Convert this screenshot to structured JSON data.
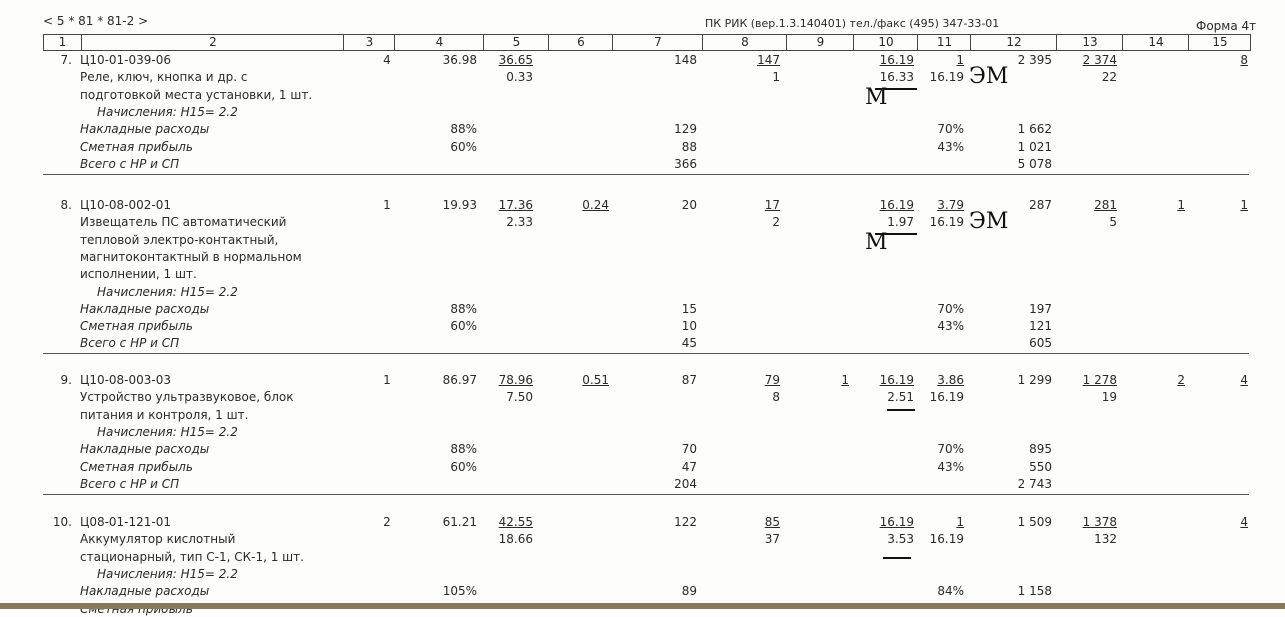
{
  "header": {
    "code": "< 5 * 81 * 81-2 >",
    "software": "ПК РИК (вер.1.3.140401) тел./факс (495) 347-33-01",
    "form": "Форма 4т",
    "columns": [
      "1",
      "2",
      "3",
      "4",
      "5",
      "6",
      "7",
      "8",
      "9",
      "10",
      "11",
      "12",
      "13",
      "14",
      "15"
    ]
  },
  "items": [
    {
      "num": "7.",
      "code": "Ц10-01-039-06",
      "desc": [
        "Реле, ключ, кнопка и др. с",
        "подготовкой места установки, 1 шт."
      ],
      "accrual": "Начисления: Н15= 2.2",
      "c3": "4",
      "c4": "36.98",
      "c5": [
        "36.65",
        "0.33"
      ],
      "c6": "",
      "c7": "148",
      "c8": [
        "147",
        "1"
      ],
      "c9": "",
      "c10": [
        "16.19",
        "16.33"
      ],
      "c11": [
        "1",
        "16.19"
      ],
      "c12": "2 395",
      "c13": [
        "2 374",
        "22"
      ],
      "c14": "",
      "c15": "8",
      "overhead": {
        "label": "Накладные расходы",
        "pct": "88%",
        "c7": "129",
        "c11": "70%",
        "c12": "1 662"
      },
      "profit": {
        "label": "Сметная прибыль",
        "pct": "60%",
        "c7": "88",
        "c11": "43%",
        "c12": "1 021"
      },
      "total": {
        "label": "Всего с НР и СП",
        "c7": "366",
        "c12": "5 078"
      },
      "handwritten": [
        "ЭМ",
        "М"
      ]
    },
    {
      "num": "8.",
      "code": "Ц10-08-002-01",
      "desc": [
        "Извещатель ПС автоматический",
        "тепловой электро-контактный,",
        "магнитоконтактный в нормальном",
        "исполнении, 1 шт."
      ],
      "accrual": "Начисления: Н15= 2.2",
      "c3": "1",
      "c4": "19.93",
      "c5": [
        "17.36",
        "2.33"
      ],
      "c6": "0.24",
      "c7": "20",
      "c8": [
        "17",
        "2"
      ],
      "c9": "",
      "c10": [
        "16.19",
        "1.97"
      ],
      "c11": [
        "3.79",
        "16.19"
      ],
      "c12": "287",
      "c13": [
        "281",
        "5"
      ],
      "c14": "1",
      "c15": "1",
      "overhead": {
        "label": "Накладные расходы",
        "pct": "88%",
        "c7": "15",
        "c11": "70%",
        "c12": "197"
      },
      "profit": {
        "label": "Сметная прибыль",
        "pct": "60%",
        "c7": "10",
        "c11": "43%",
        "c12": "121"
      },
      "total": {
        "label": "Всего с НР и СП",
        "c7": "45",
        "c12": "605"
      },
      "handwritten": [
        "ЭМ",
        "М"
      ]
    },
    {
      "num": "9.",
      "code": "Ц10-08-003-03",
      "desc": [
        "Устройство ультразвуковое, блок",
        "питания и контроля, 1 шт."
      ],
      "accrual": "Начисления: Н15= 2.2",
      "c3": "1",
      "c4": "86.97",
      "c5": [
        "78.96",
        "7.50"
      ],
      "c6": "0.51",
      "c7": "87",
      "c8": [
        "79",
        "8"
      ],
      "c9": "1",
      "c10": [
        "16.19",
        "2.51"
      ],
      "c11": [
        "3.86",
        "16.19"
      ],
      "c12": "1 299",
      "c13": [
        "1 278",
        "19"
      ],
      "c14": "2",
      "c15": "4",
      "overhead": {
        "label": "Накладные расходы",
        "pct": "88%",
        "c7": "70",
        "c11": "70%",
        "c12": "895"
      },
      "profit": {
        "label": "Сметная прибыль",
        "pct": "60%",
        "c7": "47",
        "c11": "43%",
        "c12": "550"
      },
      "total": {
        "label": "Всего с НР и СП",
        "c7": "204",
        "c12": "2 743"
      },
      "handwritten": []
    },
    {
      "num": "10.",
      "code": "Ц08-01-121-01",
      "desc": [
        "Аккумулятор кислотный",
        "стационарный, тип С-1, СК-1, 1 шт."
      ],
      "accrual": "Начисления: Н15= 2.2",
      "c3": "2",
      "c4": "61.21",
      "c5": [
        "42.55",
        "18.66"
      ],
      "c6": "",
      "c7": "122",
      "c8": [
        "85",
        "37"
      ],
      "c9": "",
      "c10": [
        "16.19",
        "3.53"
      ],
      "c11": [
        "1",
        "16.19"
      ],
      "c12": "1 509",
      "c13": [
        "1 378",
        "132"
      ],
      "c14": "",
      "c15": "4",
      "overhead": {
        "label": "Накладные расходы",
        "pct": "105%",
        "c7": "89",
        "c11": "84%",
        "c12": "1 158"
      },
      "profit": {
        "label": "Сметная прибыль",
        "pct": "",
        "c7": "",
        "c11": "",
        "c12": ""
      },
      "total": null,
      "handwritten": []
    }
  ]
}
